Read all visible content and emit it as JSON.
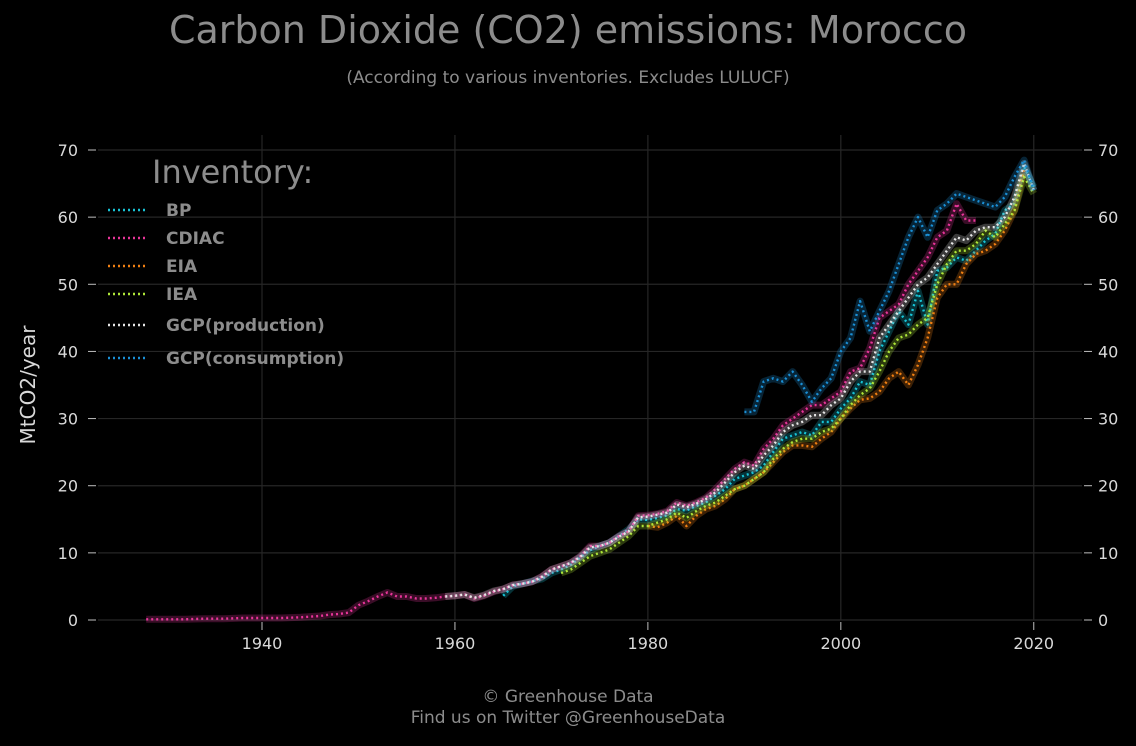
{
  "header": {
    "title": "Carbon Dioxide (CO2) emissions: Morocco",
    "subtitle": "(According to various inventories. Excludes LULUCF)"
  },
  "footer": {
    "line1": "© Greenhouse Data",
    "line2": "Find us on Twitter @GreenhouseData"
  },
  "chart_data": {
    "type": "line",
    "title": "Carbon Dioxide (CO2) emissions: Morocco",
    "subtitle": "(According to various inventories. Excludes LULUCF)",
    "xlabel": "",
    "ylabel": "MtCO2/year",
    "xlim": [
      1923,
      2025
    ],
    "ylim": [
      0,
      70
    ],
    "xticks": [
      1940,
      1960,
      1980,
      2000,
      2020
    ],
    "yticks": [
      0,
      10,
      20,
      30,
      40,
      50,
      60,
      70
    ],
    "grid": true,
    "background": "#000000",
    "legend": {
      "title": "Inventory:",
      "position": "top-left"
    },
    "series": [
      {
        "name": "BP",
        "color": "#17c3d6",
        "x": [
          1965,
          1966,
          1967,
          1968,
          1969,
          1970,
          1971,
          1972,
          1973,
          1974,
          1975,
          1976,
          1977,
          1978,
          1979,
          1980,
          1981,
          1982,
          1983,
          1984,
          1985,
          1986,
          1987,
          1988,
          1989,
          1990,
          1991,
          1992,
          1993,
          1994,
          1995,
          1996,
          1997,
          1998,
          1999,
          2000,
          2001,
          2002,
          2003,
          2004,
          2005,
          2006,
          2007,
          2008,
          2009,
          2010,
          2011,
          2012,
          2013,
          2014,
          2015,
          2016,
          2017,
          2018,
          2019,
          2020
        ],
        "y": [
          3.6,
          5,
          5.4,
          5.8,
          6.1,
          7,
          7.5,
          8.2,
          9.3,
          10.4,
          11,
          11.5,
          12.5,
          13.5,
          15,
          14.9,
          15.2,
          15.6,
          16.5,
          16.3,
          17,
          17.5,
          18.5,
          19.5,
          21,
          21.5,
          22,
          23,
          25,
          27,
          27.5,
          28,
          27.5,
          29.5,
          29.5,
          31.5,
          33,
          35.5,
          35,
          40,
          43,
          46,
          44,
          49,
          44,
          52,
          52.5,
          54,
          53.5,
          55,
          56.5,
          57.5,
          61,
          62,
          67.5,
          64.5
        ]
      },
      {
        "name": "CDIAC",
        "color": "#e8359a",
        "x": [
          1928,
          1930,
          1932,
          1934,
          1936,
          1938,
          1940,
          1942,
          1944,
          1946,
          1947,
          1948,
          1949,
          1950,
          1951,
          1952,
          1953,
          1954,
          1955,
          1956,
          1957,
          1958,
          1959,
          1960,
          1961,
          1962,
          1963,
          1964,
          1965,
          1966,
          1967,
          1968,
          1969,
          1970,
          1971,
          1972,
          1973,
          1974,
          1975,
          1976,
          1977,
          1978,
          1979,
          1980,
          1981,
          1982,
          1983,
          1984,
          1985,
          1986,
          1987,
          1988,
          1989,
          1990,
          1991,
          1992,
          1993,
          1994,
          1995,
          1996,
          1997,
          1998,
          1999,
          2000,
          2001,
          2002,
          2003,
          2004,
          2005,
          2006,
          2007,
          2008,
          2009,
          2010,
          2011,
          2012,
          2013,
          2014
        ],
        "y": [
          0.1,
          0.1,
          0.1,
          0.2,
          0.2,
          0.3,
          0.3,
          0.3,
          0.4,
          0.6,
          0.8,
          0.9,
          1.1,
          2.2,
          2.8,
          3.5,
          4.1,
          3.5,
          3.5,
          3.2,
          3.2,
          3.3,
          3.5,
          3.6,
          3.8,
          3.2,
          3.6,
          4.2,
          4.6,
          5.2,
          5.4,
          5.7,
          6.5,
          7.5,
          8,
          8.5,
          9.5,
          11,
          11,
          11.5,
          12.5,
          13.2,
          15.5,
          15.6,
          15.8,
          16.2,
          17.5,
          17,
          17.5,
          18.2,
          19.5,
          21,
          22.5,
          23.5,
          23,
          25.5,
          27,
          29,
          30,
          31,
          32,
          32,
          33,
          34,
          37,
          37.5,
          40.5,
          45,
          46,
          47,
          50,
          52,
          54,
          57,
          58,
          62,
          59.5,
          59.5
        ]
      },
      {
        "name": "EIA",
        "color": "#f07f12",
        "x": [
          1980,
          1981,
          1982,
          1983,
          1984,
          1985,
          1986,
          1987,
          1988,
          1989,
          1990,
          1991,
          1992,
          1993,
          1994,
          1995,
          1996,
          1997,
          1998,
          1999,
          2000,
          2001,
          2002,
          2003,
          2004,
          2005,
          2006,
          2007,
          2008,
          2009,
          2010,
          2011,
          2012,
          2013,
          2014,
          2015,
          2016,
          2017,
          2018,
          2019
        ],
        "y": [
          14,
          13.8,
          14.5,
          15.5,
          14,
          15.5,
          16.5,
          17,
          18,
          19.5,
          20,
          21,
          22,
          23.5,
          25,
          26,
          26,
          25.8,
          27,
          28,
          30,
          31.5,
          32.8,
          33,
          34,
          36,
          37,
          35,
          38,
          42,
          48,
          50,
          50,
          53,
          54.5,
          55,
          56,
          58,
          61,
          67
        ]
      },
      {
        "name": "IEA",
        "color": "#aee639",
        "x": [
          1971,
          1972,
          1973,
          1974,
          1975,
          1976,
          1977,
          1978,
          1979,
          1980,
          1981,
          1982,
          1983,
          1984,
          1985,
          1986,
          1987,
          1988,
          1989,
          1990,
          1991,
          1992,
          1993,
          1994,
          1995,
          1996,
          1997,
          1998,
          1999,
          2000,
          2001,
          2002,
          2003,
          2004,
          2005,
          2006,
          2007,
          2008,
          2009,
          2010,
          2011,
          2012,
          2013,
          2014,
          2015,
          2016,
          2017,
          2018,
          2019,
          2020
        ],
        "y": [
          7,
          7.5,
          8.5,
          9.5,
          10,
          10.5,
          11.5,
          12.5,
          14,
          14,
          14.5,
          15,
          16,
          15.2,
          16.2,
          17,
          17.5,
          18.5,
          19.5,
          20,
          21,
          22,
          24,
          25.5,
          26.5,
          27,
          27,
          28,
          28.5,
          30,
          32,
          33.5,
          34.5,
          37,
          40,
          42,
          42.5,
          44,
          45,
          50,
          53,
          55,
          55,
          56,
          58,
          57,
          59,
          61,
          66,
          63.5
        ]
      },
      {
        "name": "GCP(production)",
        "color": "#e6e6e6",
        "x": [
          1959,
          1960,
          1961,
          1962,
          1963,
          1964,
          1965,
          1966,
          1967,
          1968,
          1969,
          1970,
          1971,
          1972,
          1973,
          1974,
          1975,
          1976,
          1977,
          1978,
          1979,
          1980,
          1981,
          1982,
          1983,
          1984,
          1985,
          1986,
          1987,
          1988,
          1989,
          1990,
          1991,
          1992,
          1993,
          1994,
          1995,
          1996,
          1997,
          1998,
          1999,
          2000,
          2001,
          2002,
          2003,
          2004,
          2005,
          2006,
          2007,
          2008,
          2009,
          2010,
          2011,
          2012,
          2013,
          2014,
          2015,
          2016,
          2017,
          2018,
          2019,
          2020
        ],
        "y": [
          3.5,
          3.6,
          3.8,
          3.3,
          3.7,
          4.3,
          4.6,
          5.2,
          5.4,
          5.7,
          6.4,
          7.5,
          8,
          8.5,
          9.4,
          10.8,
          11,
          11.5,
          12.4,
          13.2,
          15.3,
          15.4,
          15.7,
          16,
          17.2,
          16.8,
          17.3,
          18,
          19,
          20.5,
          22,
          23,
          22.5,
          24.5,
          26,
          28,
          29,
          29.5,
          30.5,
          30.5,
          32,
          33,
          35.5,
          37,
          37,
          42,
          44,
          46,
          48,
          50,
          51,
          53,
          55,
          57,
          56.5,
          58,
          58.5,
          58.5,
          60,
          63,
          68,
          64
        ]
      },
      {
        "name": "GCP(consumption)",
        "color": "#1a8fd6",
        "x": [
          1990,
          1991,
          1992,
          1993,
          1994,
          1995,
          1996,
          1997,
          1998,
          1999,
          2000,
          2001,
          2002,
          2003,
          2004,
          2005,
          2006,
          2007,
          2008,
          2009,
          2010,
          2011,
          2012,
          2013,
          2014,
          2015,
          2016,
          2017,
          2018,
          2019,
          2020
        ],
        "y": [
          31,
          31,
          35.5,
          36,
          35.5,
          37,
          35,
          32.5,
          34.5,
          36,
          40,
          42,
          47.5,
          43,
          46,
          49,
          53,
          57,
          60,
          57,
          61,
          62,
          63.5,
          63,
          62.5,
          62,
          61.5,
          63,
          66,
          68.5,
          64
        ]
      }
    ]
  }
}
